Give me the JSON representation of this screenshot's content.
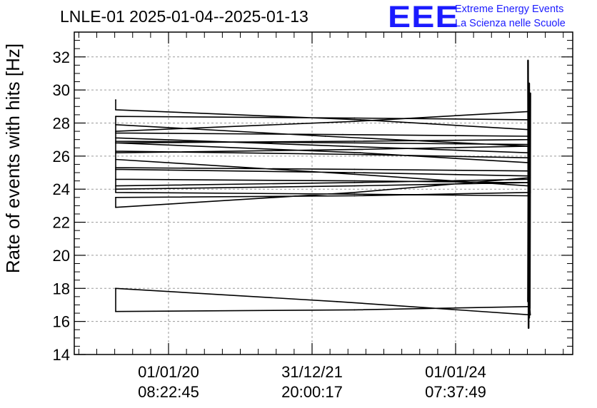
{
  "header": {
    "title": "LNLE-01 2025-01-04--2025-01-13",
    "logo_mark": "EEE",
    "logo_line1": "Extreme Energy Events",
    "logo_line2": "La Scienza nelle Scuole"
  },
  "colors": {
    "logo": "#1b1bff",
    "series": "#000000",
    "grid": "#9a9a9a"
  },
  "chart_data": {
    "type": "line",
    "title": "LNLE-01 2025-01-04--2025-01-13",
    "xlabel": "",
    "ylabel": "Rate of events with hits [Hz]",
    "ylim": [
      14,
      33.5
    ],
    "yticks": [
      14,
      16,
      18,
      20,
      22,
      24,
      26,
      28,
      30,
      32
    ],
    "xticks": [
      {
        "date": "01/01/20",
        "time": "08:22:45"
      },
      {
        "date": "31/12/21",
        "time": "20:00:17"
      },
      {
        "date": "01/01/24",
        "time": "07:37:49"
      }
    ],
    "grid": true,
    "series": [
      {
        "x": [
          "2019-02",
          "2019-02",
          "2022-08",
          "2025-01",
          "2025-01",
          "2022-07",
          "2019-02",
          "2019-02",
          "2022-07",
          "2025-01",
          "2025-01",
          "2022-02",
          "2019-02",
          "2019-02",
          "2022-05",
          "2025-01",
          "2025-01",
          "2022-05",
          "2019-02",
          "2019-02",
          "2022-08",
          "2025-01",
          "2025-01",
          "2022-07",
          "2019-02",
          "2019-02",
          "2022-07",
          "2025-01",
          "2025-01",
          "2022-07",
          "2019-02",
          "2019-02",
          "2022-07",
          "2025-01",
          "2025-01",
          "2022-07",
          "2019-02",
          "2019-02",
          "2022-07",
          "2025-01",
          "2025-01",
          "2022-07",
          "2019-02",
          "2019-02",
          "2022-07",
          "2025-01",
          "2025-01",
          "2022-07",
          "2019-02",
          "2019-02",
          "2022-07",
          "2025-01",
          "2025-01",
          "2022-07",
          "2019-02",
          "2019-02",
          "2022-07",
          "2025-01",
          "2025-01",
          "2022-07",
          "2019-02",
          "2019-02",
          "2022-07",
          "2025-01"
        ],
        "y": [
          29.4,
          28.8,
          28.2,
          27.6,
          27.0,
          26.9,
          26.8,
          28.4,
          28.3,
          28.2,
          26.6,
          27.2,
          27.9,
          27.4,
          27.3,
          27.2,
          26.2,
          26.6,
          27.1,
          26.8,
          26.2,
          25.6,
          25.1,
          25.2,
          25.3,
          25.2,
          25.0,
          24.8,
          24.6,
          24.4,
          24.2,
          24.0,
          24.2,
          24.4,
          23.8,
          23.6,
          23.5,
          22.9,
          23.8,
          24.7,
          24.2,
          24.9,
          25.8,
          26.3,
          26.1,
          25.9,
          26.7,
          26.8,
          26.9,
          24.6,
          24.5,
          24.4,
          23.6,
          23.7,
          23.8,
          25.2,
          25.0,
          24.8,
          28.7,
          28.1,
          27.5,
          26.2,
          26.4,
          26.6
        ]
      },
      {
        "x": [
          "2019-02",
          "2019-02",
          "2022-07",
          "2025-01",
          "2025-01",
          "2022-04",
          "2019-02"
        ],
        "y": [
          18.0,
          16.6,
          16.7,
          16.9,
          16.4,
          17.2,
          18.0
        ]
      },
      {
        "x": [
          "2025-01",
          "2025-01",
          "2025-01",
          "2025-01",
          "2025-01",
          "2025-01",
          "2025-01",
          "2025-01"
        ],
        "y": [
          31.8,
          15.6,
          30.4,
          16.8,
          29.8,
          17.2,
          29.2,
          16.2
        ]
      }
    ]
  }
}
